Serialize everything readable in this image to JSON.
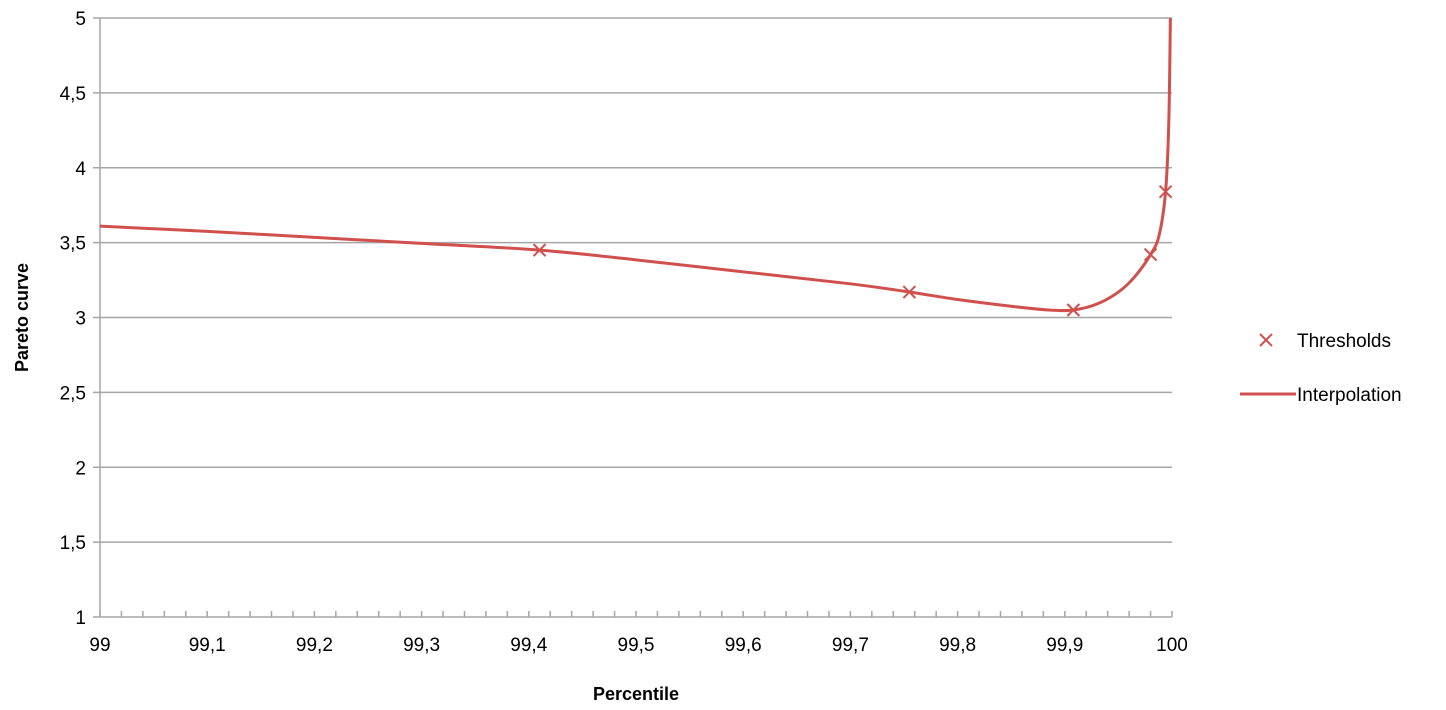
{
  "chart_data": {
    "type": "scatter",
    "title": "",
    "xlabel": "Percentile",
    "ylabel": "Pareto curve",
    "xlim": [
      99,
      100
    ],
    "ylim": [
      1,
      5
    ],
    "x_ticks": [
      99,
      99.1,
      99.2,
      99.3,
      99.4,
      99.5,
      99.6,
      99.7,
      99.8,
      99.9,
      100
    ],
    "x_tick_labels": [
      "99",
      "99,1",
      "99,2",
      "99,3",
      "99,4",
      "99,5",
      "99,6",
      "99,7",
      "99,8",
      "99,9",
      "100"
    ],
    "x_minor_tick_step": 0.02,
    "y_ticks": [
      1,
      1.5,
      2,
      2.5,
      3,
      3.5,
      4,
      4.5,
      5
    ],
    "y_tick_labels": [
      "1",
      "1,5",
      "2",
      "2,5",
      "3",
      "3,5",
      "4",
      "4,5",
      "5"
    ],
    "grid": "horizontal",
    "legend_position": "right",
    "series": [
      {
        "name": "Thresholds",
        "kind": "markers",
        "marker": "x",
        "color": "#d0504d",
        "points": [
          {
            "x": 99.41,
            "y": 3.45
          },
          {
            "x": 99.755,
            "y": 3.17
          },
          {
            "x": 99.908,
            "y": 3.05
          },
          {
            "x": 99.98,
            "y": 3.42
          },
          {
            "x": 99.994,
            "y": 3.84
          }
        ]
      },
      {
        "name": "Interpolation",
        "kind": "line",
        "color": "#d0504d",
        "points": [
          {
            "x": 99.0,
            "y": 3.61
          },
          {
            "x": 99.1,
            "y": 3.575
          },
          {
            "x": 99.2,
            "y": 3.535
          },
          {
            "x": 99.3,
            "y": 3.495
          },
          {
            "x": 99.41,
            "y": 3.45
          },
          {
            "x": 99.5,
            "y": 3.385
          },
          {
            "x": 99.6,
            "y": 3.305
          },
          {
            "x": 99.7,
            "y": 3.225
          },
          {
            "x": 99.755,
            "y": 3.17
          },
          {
            "x": 99.8,
            "y": 3.12
          },
          {
            "x": 99.85,
            "y": 3.075
          },
          {
            "x": 99.885,
            "y": 3.05
          },
          {
            "x": 99.908,
            "y": 3.05
          },
          {
            "x": 99.93,
            "y": 3.09
          },
          {
            "x": 99.95,
            "y": 3.17
          },
          {
            "x": 99.965,
            "y": 3.27
          },
          {
            "x": 99.98,
            "y": 3.42
          },
          {
            "x": 99.988,
            "y": 3.55
          },
          {
            "x": 99.994,
            "y": 3.84
          },
          {
            "x": 99.997,
            "y": 4.3
          },
          {
            "x": 99.9985,
            "y": 5.0
          }
        ]
      }
    ]
  }
}
